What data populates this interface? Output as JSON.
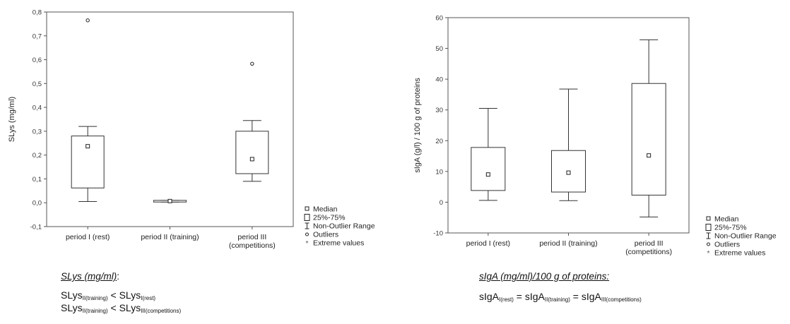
{
  "chart_data": [
    {
      "type": "box",
      "ylabel": "SLys (mg/ml)",
      "ylim": [
        -0.1,
        0.8
      ],
      "yticks": [
        "-0,1",
        "0,0",
        "0,1",
        "0,2",
        "0,3",
        "0,4",
        "0,5",
        "0,6",
        "0,7",
        "0,8"
      ],
      "ytick_values": [
        -0.1,
        0,
        0.1,
        0.2,
        0.3,
        0.4,
        0.5,
        0.6,
        0.7,
        0.8
      ],
      "categories": [
        {
          "label_lines": [
            "period I (rest)"
          ]
        },
        {
          "label_lines": [
            "period II (training)"
          ]
        },
        {
          "label_lines": [
            "period III",
            "(competitions)"
          ]
        }
      ],
      "boxes": [
        {
          "median": 0.237,
          "q1": 0.062,
          "q3": 0.28,
          "whisker_low": 0.005,
          "whisker_high": 0.32,
          "outliers": [
            0.765
          ]
        },
        {
          "median": 0.007,
          "q1": 0.003,
          "q3": 0.01,
          "whisker_low": 0.003,
          "whisker_high": 0.01,
          "outliers": []
        },
        {
          "median": 0.183,
          "q1": 0.122,
          "q3": 0.3,
          "whisker_low": 0.09,
          "whisker_high": 0.345,
          "outliers": [
            0.583
          ]
        }
      ],
      "legend": [
        "Median",
        "25%-75%",
        "Non-Outlier Range",
        "Outliers",
        "Extreme values"
      ]
    },
    {
      "type": "box",
      "ylabel": "sIgA (g/l) / 100 g of proteins",
      "ylim": [
        -10,
        60
      ],
      "yticks": [
        "-10",
        "0",
        "10",
        "20",
        "30",
        "40",
        "50",
        "60"
      ],
      "ytick_values": [
        -10,
        0,
        10,
        20,
        30,
        40,
        50,
        60
      ],
      "categories": [
        {
          "label_lines": [
            "period I (rest)"
          ]
        },
        {
          "label_lines": [
            "period II (training)"
          ]
        },
        {
          "label_lines": [
            "period III",
            "(competitions)"
          ]
        }
      ],
      "boxes": [
        {
          "median": 9.0,
          "q1": 3.8,
          "q3": 17.8,
          "whisker_low": 0.6,
          "whisker_high": 30.5,
          "outliers": []
        },
        {
          "median": 9.6,
          "q1": 3.3,
          "q3": 16.8,
          "whisker_low": 0.5,
          "whisker_high": 36.8,
          "outliers": []
        },
        {
          "median": 15.2,
          "q1": 2.3,
          "q3": 38.6,
          "whisker_low": -4.8,
          "whisker_high": 52.8,
          "outliers": []
        }
      ],
      "legend": [
        "Median",
        "25%-75%",
        "Non-Outlier Range",
        "Outliers",
        "Extreme values"
      ]
    }
  ],
  "captions": {
    "left": {
      "title": "SLys (mg/ml)",
      "title_suffix": ":",
      "line1": {
        "a": "SLys",
        "a_sub": "II(training)",
        "op": " < ",
        "b": "SLys",
        "b_sub": "I(rest)"
      },
      "line2": {
        "a": "SLys",
        "a_sub": "II(training)",
        "op": " < ",
        "b": "SLys",
        "b_sub": "III(competitions)"
      }
    },
    "right": {
      "title": "sIgA (mg/ml)/100 g of proteins:",
      "line1": {
        "a": "sIgA",
        "a_sub": "I(rest)",
        "op1": " = ",
        "b": "sIgA",
        "b_sub": "II(training)",
        "op2": " = ",
        "c": "sIgA",
        "c_sub": "III(competitions)"
      }
    }
  }
}
